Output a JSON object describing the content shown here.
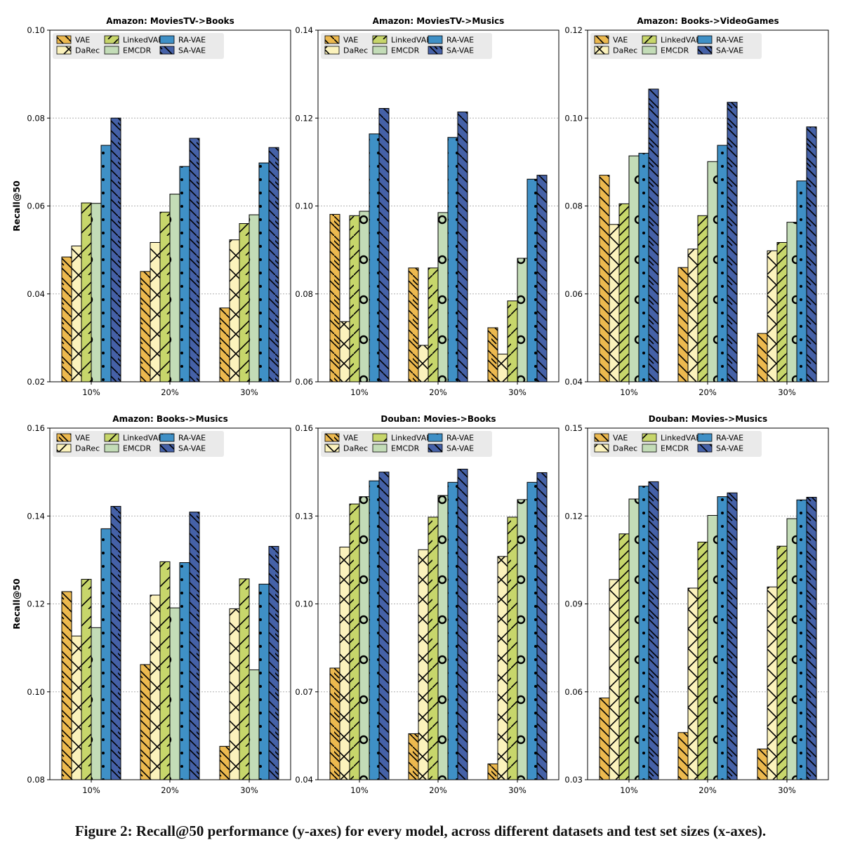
{
  "caption": "Figure 2: Recall@50 performance (y-axes) for every model, across different datasets and test set sizes (x-axes).",
  "models": [
    "VAE",
    "DaRec",
    "LinkedVAEs",
    "EMCDR",
    "RA-VAE",
    "SA-VAE"
  ],
  "colors": {
    "VAE": "#ecb94f",
    "DaRec": "#fbf2bc",
    "LinkedVAEs": "#c7d66b",
    "EMCDR": "#c3dcb7",
    "RA-VAE": "#3f90c6",
    "SA-VAE": "#4561a7"
  },
  "chart_data": [
    {
      "type": "bar",
      "title": "Amazon: MoviesTV->Books",
      "ylabel": "Recall@50",
      "categories": [
        "10%",
        "20%",
        "30%"
      ],
      "ylim": [
        0.02,
        0.1
      ],
      "yticks": [
        "0.02",
        "0.04",
        "0.06",
        "0.08",
        "0.10"
      ],
      "series": [
        {
          "name": "VAE",
          "values": [
            0.0484,
            0.0451,
            0.0368
          ]
        },
        {
          "name": "DaRec",
          "values": [
            0.0509,
            0.0517,
            0.0523
          ]
        },
        {
          "name": "LinkedVAEs",
          "values": [
            0.0607,
            0.0586,
            0.056
          ]
        },
        {
          "name": "EMCDR",
          "values": [
            0.0606,
            0.0627,
            0.058
          ]
        },
        {
          "name": "RA-VAE",
          "values": [
            0.0738,
            0.069,
            0.0698
          ]
        },
        {
          "name": "SA-VAE",
          "values": [
            0.08,
            0.0754,
            0.0733
          ]
        }
      ]
    },
    {
      "type": "bar",
      "title": "Amazon: MoviesTV->Musics",
      "ylabel": "",
      "categories": [
        "10%",
        "20%",
        "30%"
      ],
      "ylim": [
        0.06,
        0.14
      ],
      "yticks": [
        "0.06",
        "0.08",
        "0.10",
        "0.12",
        "0.14"
      ],
      "series": [
        {
          "name": "VAE",
          "values": [
            0.0981,
            0.0859,
            0.0723
          ]
        },
        {
          "name": "DaRec",
          "values": [
            0.0737,
            0.0683,
            0.0663
          ]
        },
        {
          "name": "LinkedVAEs",
          "values": [
            0.0978,
            0.0859,
            0.0784
          ]
        },
        {
          "name": "EMCDR",
          "values": [
            0.0988,
            0.0985,
            0.0881
          ]
        },
        {
          "name": "RA-VAE",
          "values": [
            0.1164,
            0.1156,
            0.1061
          ]
        },
        {
          "name": "SA-VAE",
          "values": [
            0.1222,
            0.1214,
            0.107
          ]
        }
      ]
    },
    {
      "type": "bar",
      "title": "Amazon: Books->VideoGames",
      "ylabel": "",
      "categories": [
        "10%",
        "20%",
        "30%"
      ],
      "ylim": [
        0.04,
        0.12
      ],
      "yticks": [
        "0.04",
        "0.06",
        "0.08",
        "0.10",
        "0.12"
      ],
      "series": [
        {
          "name": "VAE",
          "values": [
            0.087,
            0.066,
            0.051
          ]
        },
        {
          "name": "DaRec",
          "values": [
            0.0758,
            0.0702,
            0.0698
          ]
        },
        {
          "name": "LinkedVAEs",
          "values": [
            0.0805,
            0.0778,
            0.0717
          ]
        },
        {
          "name": "EMCDR",
          "values": [
            0.0914,
            0.0901,
            0.0763
          ]
        },
        {
          "name": "RA-VAE",
          "values": [
            0.092,
            0.0938,
            0.0857
          ]
        },
        {
          "name": "SA-VAE",
          "values": [
            0.1066,
            0.1036,
            0.098
          ]
        }
      ]
    },
    {
      "type": "bar",
      "title": "Amazon: Books->Musics",
      "ylabel": "Recall@50",
      "categories": [
        "10%",
        "20%",
        "30%"
      ],
      "ylim": [
        0.08,
        0.16
      ],
      "yticks": [
        "0.08",
        "0.10",
        "0.12",
        "0.14",
        "0.16"
      ],
      "series": [
        {
          "name": "VAE",
          "values": [
            0.1228,
            0.1062,
            0.0876
          ]
        },
        {
          "name": "DaRec",
          "values": [
            0.1127,
            0.122,
            0.1189
          ]
        },
        {
          "name": "LinkedVAEs",
          "values": [
            0.1256,
            0.1296,
            0.1257
          ]
        },
        {
          "name": "EMCDR",
          "values": [
            0.1146,
            0.1191,
            0.105
          ]
        },
        {
          "name": "RA-VAE",
          "values": [
            0.1371,
            0.1294,
            0.1245
          ]
        },
        {
          "name": "SA-VAE",
          "values": [
            0.1422,
            0.1409,
            0.1331
          ]
        }
      ]
    },
    {
      "type": "bar",
      "title": "Douban: Movies->Books",
      "ylabel": "",
      "categories": [
        "10%",
        "20%",
        "30%"
      ],
      "ylim": [
        0.04,
        0.16
      ],
      "yticks": [
        "0.04",
        "0.07",
        "0.10",
        "0.13",
        "0.16"
      ],
      "series": [
        {
          "name": "VAE",
          "values": [
            0.0781,
            0.0557,
            0.0454
          ]
        },
        {
          "name": "DaRec",
          "values": [
            0.1194,
            0.1185,
            0.1162
          ]
        },
        {
          "name": "LinkedVAEs",
          "values": [
            0.1341,
            0.1296,
            0.1296
          ]
        },
        {
          "name": "EMCDR",
          "values": [
            0.1366,
            0.137,
            0.1356
          ]
        },
        {
          "name": "RA-VAE",
          "values": [
            0.142,
            0.1415,
            0.1415
          ]
        },
        {
          "name": "SA-VAE",
          "values": [
            0.145,
            0.146,
            0.1448
          ]
        }
      ]
    },
    {
      "type": "bar",
      "title": "Douban: Movies->Musics",
      "ylabel": "",
      "categories": [
        "10%",
        "20%",
        "30%"
      ],
      "ylim": [
        0.03,
        0.15
      ],
      "yticks": [
        "0.03",
        "0.06",
        "0.09",
        "0.12",
        "0.15"
      ],
      "series": [
        {
          "name": "VAE",
          "values": [
            0.0579,
            0.0461,
            0.0405
          ]
        },
        {
          "name": "DaRec",
          "values": [
            0.0983,
            0.0954,
            0.0958
          ]
        },
        {
          "name": "LinkedVAEs",
          "values": [
            0.1139,
            0.1111,
            0.1097
          ]
        },
        {
          "name": "EMCDR",
          "values": [
            0.1258,
            0.1202,
            0.1191
          ]
        },
        {
          "name": "RA-VAE",
          "values": [
            0.1302,
            0.1266,
            0.1255
          ]
        },
        {
          "name": "SA-VAE",
          "values": [
            0.1317,
            0.1279,
            0.1264
          ]
        }
      ]
    }
  ]
}
